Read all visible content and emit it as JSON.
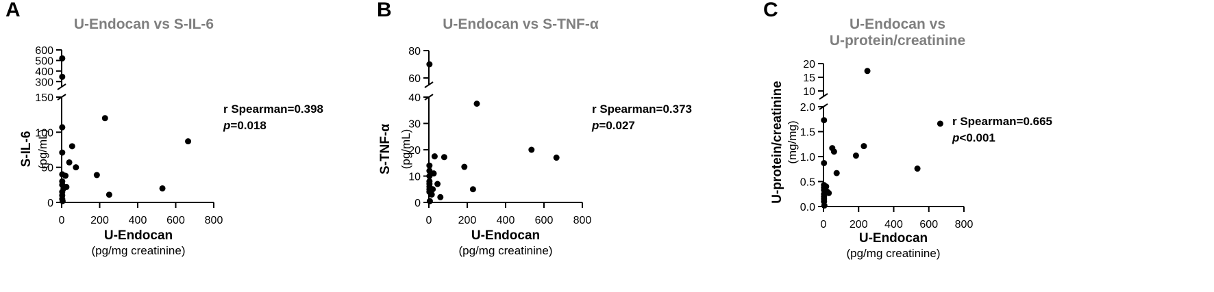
{
  "chart_data": [
    {
      "type": "scatter",
      "panel_label": "A",
      "title": "U-Endocan vs S-IL-6",
      "xlabel": "U-Endocan",
      "xunit": "(pg/mg creatinine)",
      "ylabel": "S-IL-6",
      "yunit": "(pg/mL)",
      "xlim": [
        0,
        800
      ],
      "x_ticks": [
        "0",
        "200",
        "400",
        "600",
        "800"
      ],
      "y_axis_broken": true,
      "y_lower": {
        "range": [
          0,
          150
        ],
        "ticks": [
          "0",
          "50",
          "100",
          "150"
        ]
      },
      "y_upper": {
        "range": [
          250,
          600
        ],
        "ticks": [
          "300",
          "400",
          "500",
          "600"
        ]
      },
      "stat_line1": "r Spearman=0.398",
      "stat_p_label": "p",
      "stat_p_value": "=0.018",
      "points": [
        {
          "x": 3,
          "y": 520
        },
        {
          "x": 3,
          "y": 345
        },
        {
          "x": 3,
          "y": 107
        },
        {
          "x": 3,
          "y": 71
        },
        {
          "x": 3,
          "y": 40
        },
        {
          "x": 3,
          "y": 30
        },
        {
          "x": 3,
          "y": 25
        },
        {
          "x": 3,
          "y": 15
        },
        {
          "x": 3,
          "y": 10
        },
        {
          "x": 3,
          "y": 5
        },
        {
          "x": 5,
          "y": 2
        },
        {
          "x": 10,
          "y": 20
        },
        {
          "x": 12,
          "y": 22
        },
        {
          "x": 20,
          "y": 38
        },
        {
          "x": 25,
          "y": 22
        },
        {
          "x": 40,
          "y": 57
        },
        {
          "x": 55,
          "y": 80
        },
        {
          "x": 75,
          "y": 50
        },
        {
          "x": 185,
          "y": 39
        },
        {
          "x": 228,
          "y": 120
        },
        {
          "x": 250,
          "y": 11
        },
        {
          "x": 530,
          "y": 20
        },
        {
          "x": 665,
          "y": 87
        }
      ]
    },
    {
      "type": "scatter",
      "panel_label": "B",
      "title": "U-Endocan vs S-TNF-α",
      "xlabel": "U-Endocan",
      "xunit": "(pg/mg creatinine)",
      "ylabel": "S-TNF-α",
      "yunit": "(pg/mL)",
      "xlim": [
        0,
        800
      ],
      "x_ticks": [
        "0",
        "200",
        "400",
        "600",
        "800"
      ],
      "y_axis_broken": true,
      "y_lower": {
        "range": [
          0,
          40
        ],
        "ticks": [
          "0",
          "10",
          "20",
          "30",
          "40"
        ]
      },
      "y_upper": {
        "range": [
          55,
          80
        ],
        "ticks": [
          "60",
          "80"
        ]
      },
      "stat_line1": "r Spearman=0.373",
      "stat_p_label": "p",
      "stat_p_value": "=0.027",
      "points": [
        {
          "x": 3,
          "y": 70
        },
        {
          "x": 3,
          "y": 14
        },
        {
          "x": 3,
          "y": 12
        },
        {
          "x": 3,
          "y": 10
        },
        {
          "x": 3,
          "y": 8
        },
        {
          "x": 3,
          "y": 7
        },
        {
          "x": 3,
          "y": 6
        },
        {
          "x": 3,
          "y": 5
        },
        {
          "x": 3,
          "y": 4
        },
        {
          "x": 5,
          "y": 0.5
        },
        {
          "x": 10,
          "y": 11
        },
        {
          "x": 15,
          "y": 3
        },
        {
          "x": 20,
          "y": 5
        },
        {
          "x": 25,
          "y": 11
        },
        {
          "x": 30,
          "y": 17.5
        },
        {
          "x": 45,
          "y": 7
        },
        {
          "x": 60,
          "y": 2
        },
        {
          "x": 80,
          "y": 17.2
        },
        {
          "x": 185,
          "y": 13.5
        },
        {
          "x": 230,
          "y": 5
        },
        {
          "x": 250,
          "y": 37.5
        },
        {
          "x": 535,
          "y": 20
        },
        {
          "x": 665,
          "y": 17
        }
      ]
    },
    {
      "type": "scatter",
      "panel_label": "C",
      "title": "U-Endocan vs U-protein/creatinine",
      "title_line1": "U-Endocan vs",
      "title_line2": "U-protein/creatinine",
      "xlabel": "U-Endocan",
      "xunit": "(pg/mg creatinine)",
      "ylabel": "U-protein/creatinine",
      "yunit": "(mg/mg)",
      "xlim": [
        0,
        800
      ],
      "x_ticks": [
        "0",
        "200",
        "400",
        "600",
        "800"
      ],
      "y_axis_broken": true,
      "y_lower": {
        "range": [
          0,
          2.0
        ],
        "ticks": [
          "0.0",
          "0.5",
          "1.0",
          "1.5",
          "2.0"
        ]
      },
      "y_upper": {
        "range": [
          8,
          20
        ],
        "ticks": [
          "10",
          "15",
          "20"
        ]
      },
      "stat_line1": "r Spearman=0.665",
      "stat_p_label": "p",
      "stat_p_value": "<0.001",
      "points": [
        {
          "x": 3,
          "y": 1.73
        },
        {
          "x": 3,
          "y": 0.87
        },
        {
          "x": 3,
          "y": 0.43
        },
        {
          "x": 3,
          "y": 0.38
        },
        {
          "x": 3,
          "y": 0.33
        },
        {
          "x": 3,
          "y": 0.25
        },
        {
          "x": 3,
          "y": 0.2
        },
        {
          "x": 3,
          "y": 0.15
        },
        {
          "x": 3,
          "y": 0.1
        },
        {
          "x": 5,
          "y": 0.02
        },
        {
          "x": 15,
          "y": 0.4
        },
        {
          "x": 20,
          "y": 0.3
        },
        {
          "x": 30,
          "y": 0.27
        },
        {
          "x": 50,
          "y": 1.17
        },
        {
          "x": 60,
          "y": 1.1
        },
        {
          "x": 75,
          "y": 0.67
        },
        {
          "x": 185,
          "y": 1.02
        },
        {
          "x": 230,
          "y": 1.21
        },
        {
          "x": 250,
          "y": 17.3
        },
        {
          "x": 535,
          "y": 0.76
        },
        {
          "x": 665,
          "y": 1.66
        }
      ]
    }
  ]
}
